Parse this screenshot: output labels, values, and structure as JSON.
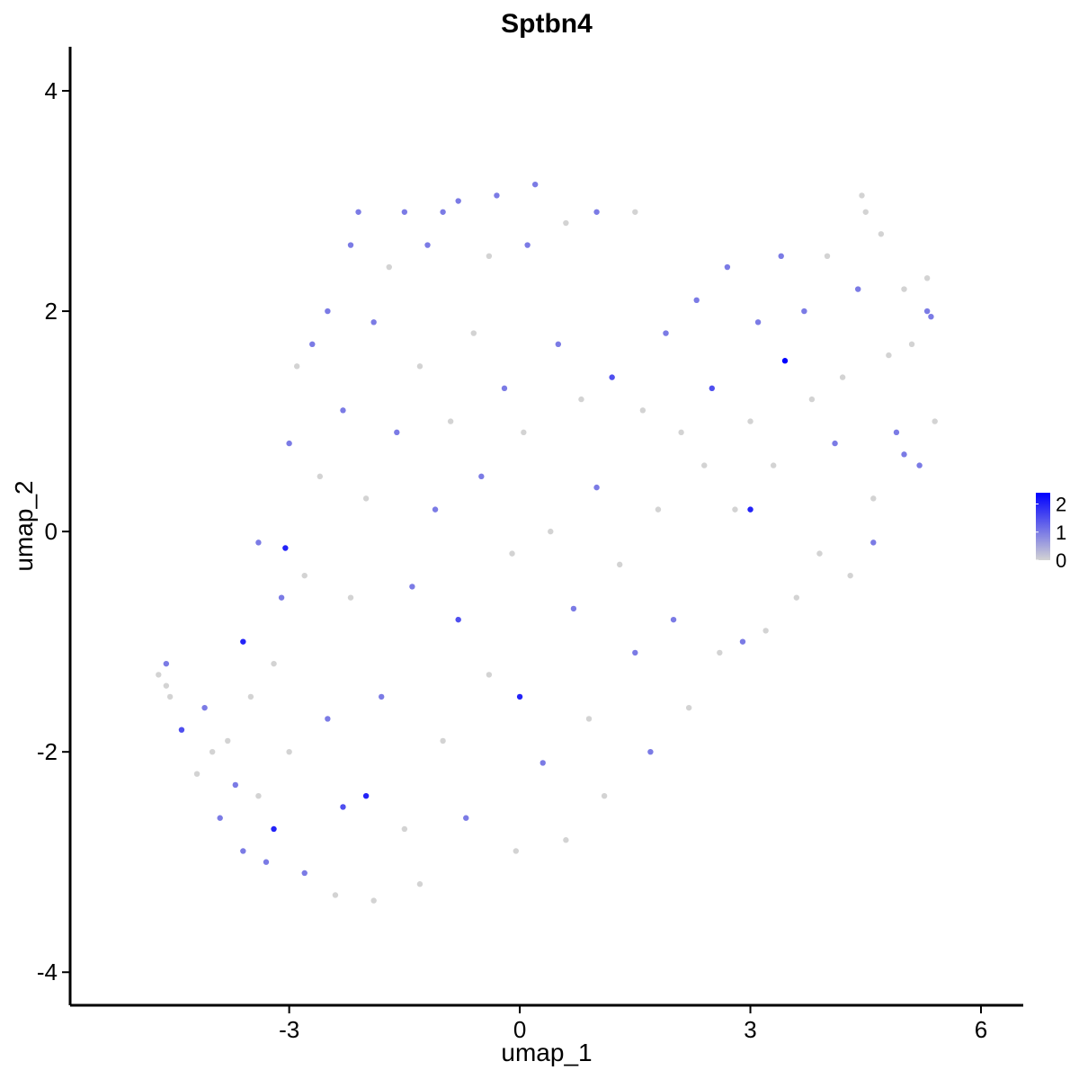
{
  "chart_data": {
    "type": "scatter",
    "title": "Sptbn4",
    "xlabel": "umap_1",
    "ylabel": "umap_2",
    "xlim": [
      -5.85,
      6.55
    ],
    "ylim": [
      -4.3,
      4.4
    ],
    "xticks": [
      -3,
      0,
      3,
      6
    ],
    "xtick_labels": [
      "-3",
      "0",
      "3",
      "6"
    ],
    "yticks": [
      -4,
      -2,
      0,
      2,
      4
    ],
    "ytick_labels": [
      "-4",
      "-2",
      "0",
      "2",
      "4"
    ],
    "grid": false,
    "legend": {
      "placement": "right",
      "type": "colorbar",
      "ticks": [
        0,
        1,
        2
      ],
      "tick_labels": [
        "0",
        "1",
        "2"
      ],
      "range": [
        0,
        2.4
      ]
    },
    "colors": {
      "low": "#d3d3d3",
      "high": "#0000ff"
    },
    "series": [
      {
        "values": [
          {
            "x": -4.7,
            "y": -1.3,
            "v": 0
          },
          {
            "x": -4.6,
            "y": -1.2,
            "v": 1
          },
          {
            "x": -4.6,
            "y": -1.4,
            "v": 0
          },
          {
            "x": -4.55,
            "y": -1.5,
            "v": 0
          },
          {
            "x": -4.4,
            "y": -1.8,
            "v": 1.5
          },
          {
            "x": -4.2,
            "y": -2.2,
            "v": 0
          },
          {
            "x": -4.1,
            "y": -1.6,
            "v": 1
          },
          {
            "x": -4.0,
            "y": -2.0,
            "v": 0
          },
          {
            "x": -3.9,
            "y": -2.6,
            "v": 1
          },
          {
            "x": -3.8,
            "y": -1.9,
            "v": 0
          },
          {
            "x": -3.7,
            "y": -2.3,
            "v": 1
          },
          {
            "x": -3.6,
            "y": -1.0,
            "v": 2
          },
          {
            "x": -3.6,
            "y": -2.9,
            "v": 1
          },
          {
            "x": -3.5,
            "y": -1.5,
            "v": 0
          },
          {
            "x": -3.4,
            "y": -0.1,
            "v": 1
          },
          {
            "x": -3.4,
            "y": -2.4,
            "v": 0
          },
          {
            "x": -3.3,
            "y": -3.0,
            "v": 1
          },
          {
            "x": -3.2,
            "y": -2.7,
            "v": 2
          },
          {
            "x": -3.2,
            "y": -1.2,
            "v": 0
          },
          {
            "x": -3.1,
            "y": -0.6,
            "v": 1
          },
          {
            "x": -3.05,
            "y": -0.15,
            "v": 2
          },
          {
            "x": -3.0,
            "y": -2.0,
            "v": 0
          },
          {
            "x": -3.0,
            "y": 0.8,
            "v": 1
          },
          {
            "x": -2.9,
            "y": 1.5,
            "v": 0
          },
          {
            "x": -2.8,
            "y": -0.4,
            "v": 0
          },
          {
            "x": -2.8,
            "y": -3.1,
            "v": 1
          },
          {
            "x": -2.7,
            "y": 1.7,
            "v": 1
          },
          {
            "x": -2.6,
            "y": 0.5,
            "v": 0
          },
          {
            "x": -2.5,
            "y": -1.7,
            "v": 1
          },
          {
            "x": -2.5,
            "y": 2.0,
            "v": 1
          },
          {
            "x": -2.4,
            "y": -3.3,
            "v": 0
          },
          {
            "x": -2.3,
            "y": -2.5,
            "v": 1.5
          },
          {
            "x": -2.3,
            "y": 1.1,
            "v": 1
          },
          {
            "x": -2.2,
            "y": 2.6,
            "v": 1
          },
          {
            "x": -2.2,
            "y": -0.6,
            "v": 0
          },
          {
            "x": -2.1,
            "y": 2.9,
            "v": 1
          },
          {
            "x": -2.0,
            "y": -2.4,
            "v": 2
          },
          {
            "x": -2.0,
            "y": 0.3,
            "v": 0
          },
          {
            "x": -1.9,
            "y": -3.35,
            "v": 0
          },
          {
            "x": -1.9,
            "y": 1.9,
            "v": 1
          },
          {
            "x": -1.8,
            "y": -1.5,
            "v": 1
          },
          {
            "x": -1.7,
            "y": 2.4,
            "v": 0
          },
          {
            "x": -1.6,
            "y": 0.9,
            "v": 1
          },
          {
            "x": -1.5,
            "y": 2.9,
            "v": 1
          },
          {
            "x": -1.5,
            "y": -2.7,
            "v": 0
          },
          {
            "x": -1.4,
            "y": -0.5,
            "v": 1
          },
          {
            "x": -1.3,
            "y": 1.5,
            "v": 0
          },
          {
            "x": -1.3,
            "y": -3.2,
            "v": 0
          },
          {
            "x": -1.2,
            "y": 2.6,
            "v": 1
          },
          {
            "x": -1.1,
            "y": 0.2,
            "v": 1
          },
          {
            "x": -1.0,
            "y": -1.9,
            "v": 0
          },
          {
            "x": -1.0,
            "y": 2.9,
            "v": 1
          },
          {
            "x": -0.9,
            "y": 1.0,
            "v": 0
          },
          {
            "x": -0.8,
            "y": -0.8,
            "v": 1.5
          },
          {
            "x": -0.8,
            "y": 3.0,
            "v": 1
          },
          {
            "x": -0.7,
            "y": -2.6,
            "v": 1
          },
          {
            "x": -0.6,
            "y": 1.8,
            "v": 0
          },
          {
            "x": -0.5,
            "y": 0.5,
            "v": 1
          },
          {
            "x": -0.4,
            "y": -1.3,
            "v": 0
          },
          {
            "x": -0.4,
            "y": 2.5,
            "v": 0
          },
          {
            "x": -0.3,
            "y": 3.05,
            "v": 1
          },
          {
            "x": -0.2,
            "y": 1.3,
            "v": 1
          },
          {
            "x": -0.1,
            "y": -0.2,
            "v": 0
          },
          {
            "x": -0.05,
            "y": -2.9,
            "v": 0
          },
          {
            "x": 0.0,
            "y": -1.5,
            "v": 2
          },
          {
            "x": 0.05,
            "y": 0.9,
            "v": 0
          },
          {
            "x": 0.1,
            "y": 2.6,
            "v": 1
          },
          {
            "x": 0.2,
            "y": 3.15,
            "v": 1
          },
          {
            "x": 0.3,
            "y": -2.1,
            "v": 1
          },
          {
            "x": 0.4,
            "y": 0.0,
            "v": 0
          },
          {
            "x": 0.5,
            "y": 1.7,
            "v": 1
          },
          {
            "x": 0.6,
            "y": -2.8,
            "v": 0
          },
          {
            "x": 0.6,
            "y": 2.8,
            "v": 0
          },
          {
            "x": 0.7,
            "y": -0.7,
            "v": 1
          },
          {
            "x": 0.8,
            "y": 1.2,
            "v": 0
          },
          {
            "x": 0.9,
            "y": -1.7,
            "v": 0
          },
          {
            "x": 1.0,
            "y": 2.9,
            "v": 1
          },
          {
            "x": 1.0,
            "y": 0.4,
            "v": 1
          },
          {
            "x": 1.1,
            "y": -2.4,
            "v": 0
          },
          {
            "x": 1.2,
            "y": 1.4,
            "v": 1.5
          },
          {
            "x": 1.3,
            "y": -0.3,
            "v": 0
          },
          {
            "x": 1.5,
            "y": 2.9,
            "v": 0
          },
          {
            "x": 1.5,
            "y": -1.1,
            "v": 1
          },
          {
            "x": 1.6,
            "y": 1.1,
            "v": 0
          },
          {
            "x": 1.7,
            "y": -2.0,
            "v": 1
          },
          {
            "x": 1.8,
            "y": 0.2,
            "v": 0
          },
          {
            "x": 1.9,
            "y": 1.8,
            "v": 1
          },
          {
            "x": 2.0,
            "y": -0.8,
            "v": 1
          },
          {
            "x": 2.1,
            "y": 0.9,
            "v": 0
          },
          {
            "x": 2.2,
            "y": -1.6,
            "v": 0
          },
          {
            "x": 2.3,
            "y": 2.1,
            "v": 1
          },
          {
            "x": 2.4,
            "y": 0.6,
            "v": 0
          },
          {
            "x": 2.5,
            "y": 1.3,
            "v": 1.5
          },
          {
            "x": 2.6,
            "y": -1.1,
            "v": 0
          },
          {
            "x": 2.7,
            "y": 2.4,
            "v": 1
          },
          {
            "x": 2.8,
            "y": 0.2,
            "v": 0
          },
          {
            "x": 2.9,
            "y": -1.0,
            "v": 1
          },
          {
            "x": 3.0,
            "y": 1.0,
            "v": 0
          },
          {
            "x": 3.0,
            "y": 0.2,
            "v": 2
          },
          {
            "x": 3.1,
            "y": 1.9,
            "v": 1
          },
          {
            "x": 3.2,
            "y": -0.9,
            "v": 0
          },
          {
            "x": 3.3,
            "y": 0.6,
            "v": 0
          },
          {
            "x": 3.4,
            "y": 2.5,
            "v": 1
          },
          {
            "x": 3.45,
            "y": 1.55,
            "v": 2.4
          },
          {
            "x": 3.6,
            "y": -0.6,
            "v": 0
          },
          {
            "x": 3.7,
            "y": 2.0,
            "v": 1
          },
          {
            "x": 3.8,
            "y": 1.2,
            "v": 0
          },
          {
            "x": 3.9,
            "y": -0.2,
            "v": 0
          },
          {
            "x": 4.0,
            "y": 2.5,
            "v": 0
          },
          {
            "x": 4.1,
            "y": 0.8,
            "v": 1
          },
          {
            "x": 4.2,
            "y": 1.4,
            "v": 0
          },
          {
            "x": 4.3,
            "y": -0.4,
            "v": 0
          },
          {
            "x": 4.4,
            "y": 2.2,
            "v": 1
          },
          {
            "x": 4.45,
            "y": 3.05,
            "v": 0
          },
          {
            "x": 4.5,
            "y": 2.9,
            "v": 0
          },
          {
            "x": 4.6,
            "y": 0.3,
            "v": 0
          },
          {
            "x": 4.6,
            "y": -0.1,
            "v": 1
          },
          {
            "x": 4.7,
            "y": 2.7,
            "v": 0
          },
          {
            "x": 4.8,
            "y": 1.6,
            "v": 0
          },
          {
            "x": 4.9,
            "y": 0.9,
            "v": 1
          },
          {
            "x": 5.0,
            "y": 2.2,
            "v": 0
          },
          {
            "x": 5.0,
            "y": 0.7,
            "v": 1
          },
          {
            "x": 5.1,
            "y": 1.7,
            "v": 0
          },
          {
            "x": 5.2,
            "y": 0.6,
            "v": 1
          },
          {
            "x": 5.3,
            "y": 2.0,
            "v": 1
          },
          {
            "x": 5.3,
            "y": 2.3,
            "v": 0
          },
          {
            "x": 5.35,
            "y": 1.95,
            "v": 1
          },
          {
            "x": 5.4,
            "y": 1.0,
            "v": 0
          }
        ]
      }
    ]
  }
}
